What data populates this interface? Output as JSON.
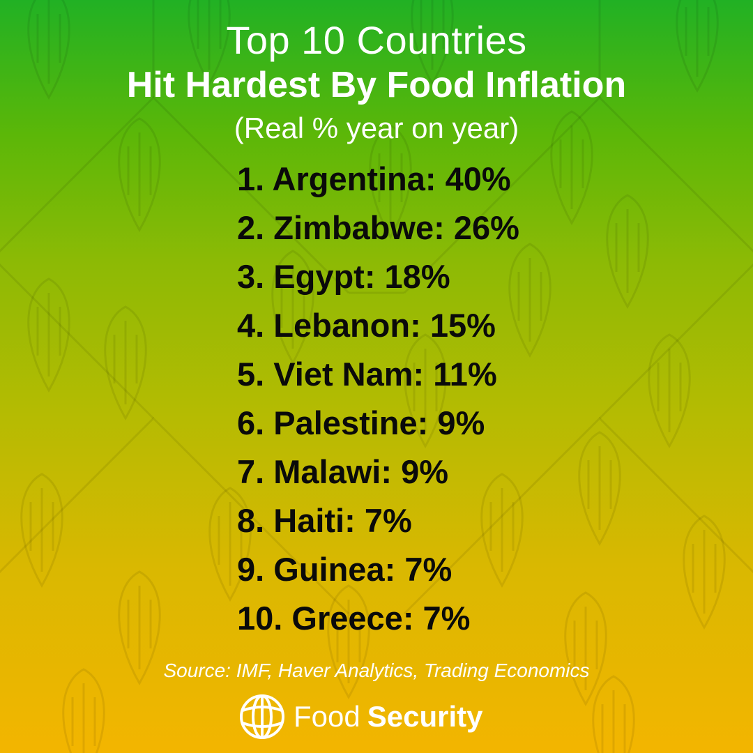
{
  "colors": {
    "gradient_top": "#21b124",
    "gradient_bottom": "#f3b500",
    "title_text": "#ffffff",
    "list_text": "#0a0a0a",
    "pattern_stroke": "#000000"
  },
  "header": {
    "title_line1": "Top 10 Countries",
    "title_line2": "Hit Hardest By Food Inflation",
    "subtitle": "(Real % year on year)"
  },
  "ranking": [
    {
      "rank": "1.",
      "country": "Argentina",
      "value": "40%"
    },
    {
      "rank": "2.",
      "country": "Zimbabwe",
      "value": "26%"
    },
    {
      "rank": "3.",
      "country": "Egypt",
      "value": "18%"
    },
    {
      "rank": "4.",
      "country": "Lebanon",
      "value": "15%"
    },
    {
      "rank": "5.",
      "country": "Viet Nam",
      "value": "11%"
    },
    {
      "rank": "6.",
      "country": "Palestine",
      "value": "9%"
    },
    {
      "rank": "7.",
      "country": "Malawi",
      "value": "9%"
    },
    {
      "rank": "8.",
      "country": "Haiti",
      "value": "7%"
    },
    {
      "rank": "9.",
      "country": "Guinea",
      "value": "7%"
    },
    {
      "rank": "10.",
      "country": "Greece",
      "value": "7%"
    }
  ],
  "footer": {
    "source": "Source: IMF, Haver Analytics, Trading Economics",
    "brand_word1": "Food",
    "brand_word2": "Security",
    "brand_icon": "globe-icon"
  },
  "background": {
    "pattern_icon": "wheat-grain-icon"
  }
}
